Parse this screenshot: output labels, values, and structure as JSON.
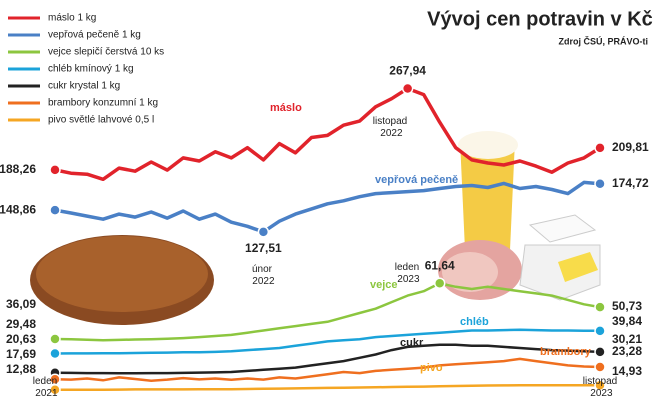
{
  "chart_data": {
    "type": "line",
    "title": "Vývoj cen potravin v Kč",
    "subtitle": "Zdroj ČSÚ, PRÁVO-ti",
    "categories": [
      "leden 2021",
      null,
      null,
      null,
      null,
      null,
      null,
      null,
      null,
      null,
      null,
      null,
      null,
      "únor 2022",
      null,
      null,
      null,
      null,
      null,
      null,
      null,
      null,
      "listopad 2022",
      null,
      "leden 2023",
      null,
      null,
      null,
      null,
      null,
      null,
      null,
      null,
      null,
      "listopad 2023"
    ],
    "ylim": [
      100,
      290
    ],
    "y2lim": [
      10,
      70
    ],
    "legend": "top-left",
    "series": [
      {
        "name": "máslo 1 kg",
        "label": "máslo",
        "color": "#e1232b",
        "values": [
          188.26,
          185,
          184,
          179,
          190,
          187,
          196,
          188,
          200,
          197,
          206,
          200,
          210,
          198,
          214,
          205,
          220,
          222,
          232,
          236,
          250,
          258,
          267.94,
          262,
          235,
          210,
          198,
          195,
          193,
          197,
          192,
          186,
          195,
          200,
          209.81
        ],
        "value_labels": [
          "188,26",
          null,
          null,
          null,
          null,
          null,
          null,
          null,
          null,
          null,
          null,
          null,
          null,
          null,
          null,
          null,
          null,
          null,
          null,
          null,
          null,
          null,
          "267,94",
          null,
          null,
          null,
          null,
          null,
          null,
          null,
          null,
          null,
          null,
          null,
          "209,81"
        ]
      },
      {
        "name": "vepřová pečeně 1 kg",
        "label": "vepřová pečeně",
        "color": "#4a80c6",
        "values": [
          148.86,
          146,
          143,
          140,
          145,
          142,
          147,
          141,
          148,
          140,
          145,
          137,
          133,
          127.51,
          138,
          145,
          150,
          155,
          158,
          162,
          165,
          166,
          167,
          168,
          170,
          172,
          173,
          171,
          175,
          170,
          172,
          169,
          165,
          176,
          174.72
        ],
        "value_labels": [
          "148,86",
          null,
          null,
          null,
          null,
          null,
          null,
          null,
          null,
          null,
          null,
          null,
          null,
          "127,51",
          null,
          null,
          null,
          null,
          null,
          null,
          null,
          null,
          null,
          null,
          null,
          null,
          null,
          null,
          null,
          null,
          null,
          null,
          null,
          null,
          "174,72"
        ]
      },
      {
        "name": "vejce slepičí čerstvá 10 ks",
        "label": "vejce",
        "color": "#8cc63f",
        "axis": "y2",
        "values": [
          36.09,
          36,
          35.8,
          35.5,
          35.7,
          35.9,
          36,
          36.2,
          36.5,
          37,
          37.5,
          38,
          39,
          40,
          41,
          42,
          43,
          44,
          46,
          48,
          50,
          53,
          56,
          58,
          61.64,
          60,
          59,
          60,
          59,
          58,
          57,
          56,
          54,
          52,
          50.73
        ],
        "value_labels": [
          "36,09",
          null,
          null,
          null,
          null,
          null,
          null,
          null,
          null,
          null,
          null,
          null,
          null,
          null,
          null,
          null,
          null,
          null,
          null,
          null,
          null,
          null,
          null,
          null,
          "61,64",
          null,
          null,
          null,
          null,
          null,
          null,
          null,
          null,
          null,
          "50,73"
        ]
      },
      {
        "name": "chléb kmínový 1 kg",
        "label": "chléb",
        "color": "#1ba3da",
        "axis": "y2",
        "values": [
          29.48,
          29.5,
          29.5,
          29.6,
          29.6,
          29.7,
          29.8,
          29.9,
          30,
          30,
          30.2,
          30.5,
          31,
          31.5,
          32,
          33,
          34,
          35,
          35.5,
          36,
          37,
          37.5,
          38,
          38.5,
          39,
          39.5,
          40,
          40,
          40.2,
          40.3,
          40.2,
          40,
          40,
          39.9,
          39.84
        ],
        "value_labels": [
          "29,48",
          null,
          null,
          null,
          null,
          null,
          null,
          null,
          null,
          null,
          null,
          null,
          null,
          null,
          null,
          null,
          null,
          null,
          null,
          null,
          null,
          null,
          null,
          null,
          null,
          null,
          null,
          null,
          null,
          null,
          null,
          null,
          null,
          null,
          "39,84"
        ]
      },
      {
        "name": "cukr krystal 1 kg",
        "label": "cukr",
        "color": "#222222",
        "axis": "y2",
        "values": [
          20.63,
          20.6,
          20.5,
          20.5,
          20.4,
          20.4,
          20.5,
          20.5,
          20.6,
          20.7,
          20.8,
          21,
          21.5,
          22,
          22.5,
          23,
          24,
          25,
          26,
          27.5,
          29,
          31,
          32.5,
          33,
          33.5,
          33.5,
          33,
          33,
          32.5,
          32,
          31.5,
          31,
          30.8,
          30.5,
          30.21
        ],
        "value_labels": [
          "20,63",
          null,
          null,
          null,
          null,
          null,
          null,
          null,
          null,
          null,
          null,
          null,
          null,
          null,
          null,
          null,
          null,
          null,
          null,
          null,
          null,
          null,
          null,
          null,
          null,
          null,
          null,
          null,
          null,
          null,
          null,
          null,
          null,
          null,
          "30,21"
        ]
      },
      {
        "name": "brambory konzumní 1 kg",
        "label": "brambory",
        "color": "#ef6f1f",
        "axis": "y2",
        "values": [
          17.69,
          17.5,
          18,
          17.2,
          18.5,
          17.8,
          17,
          17.5,
          18.2,
          17.6,
          18,
          17.4,
          18,
          17.5,
          18.5,
          18,
          19,
          20,
          21,
          20.5,
          21.5,
          22,
          22.5,
          23,
          24,
          24.5,
          25,
          25.5,
          26,
          27,
          26,
          25,
          24,
          23.5,
          23.28
        ],
        "value_labels": [
          "17,69",
          null,
          null,
          null,
          null,
          null,
          null,
          null,
          null,
          null,
          null,
          null,
          null,
          null,
          null,
          null,
          null,
          null,
          null,
          null,
          null,
          null,
          null,
          null,
          null,
          null,
          null,
          null,
          null,
          null,
          null,
          null,
          null,
          null,
          "23,28"
        ]
      },
      {
        "name": "pivo světlé lahvové 0,5 l",
        "label": "pivo",
        "color": "#f5a623",
        "axis": "y2",
        "values": [
          12.88,
          12.9,
          12.9,
          12.9,
          12.95,
          13,
          13,
          13,
          13,
          13.05,
          13.1,
          13.1,
          13.2,
          13.3,
          13.4,
          13.5,
          13.6,
          13.7,
          13.8,
          13.9,
          14,
          14.1,
          14.2,
          14.3,
          14.5,
          14.6,
          14.7,
          14.8,
          14.85,
          14.9,
          14.9,
          14.9,
          14.9,
          14.92,
          14.93
        ],
        "value_labels": [
          "12,88",
          null,
          null,
          null,
          null,
          null,
          null,
          null,
          null,
          null,
          null,
          null,
          null,
          null,
          null,
          null,
          null,
          null,
          null,
          null,
          null,
          null,
          null,
          null,
          null,
          null,
          null,
          null,
          null,
          null,
          null,
          null,
          null,
          null,
          "14,93"
        ]
      }
    ]
  }
}
